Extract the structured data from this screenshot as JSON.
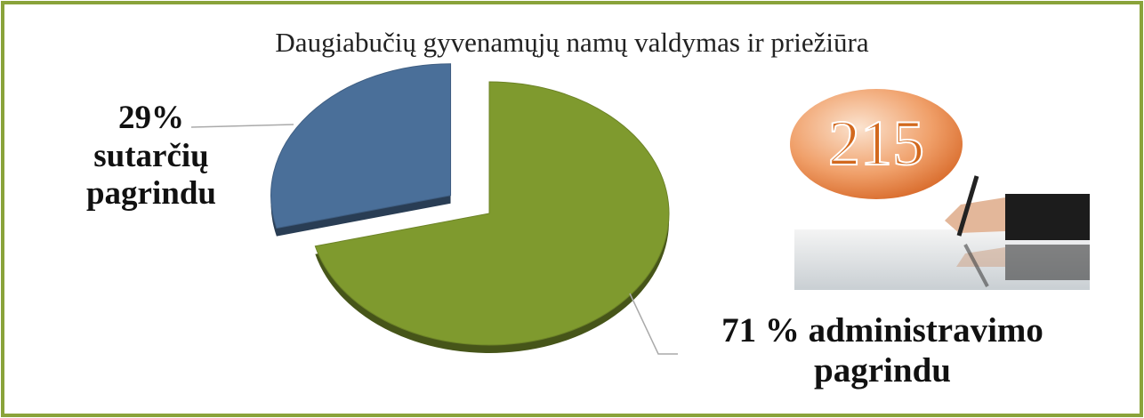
{
  "chart_data": {
    "type": "pie",
    "title": "Daugiabučių gyvenamųjų namų valdymas ir priežiūra",
    "categories": [
      "sutarčių pagrindu",
      "administravimo pagrindu"
    ],
    "values": [
      29,
      71
    ],
    "value_labels": [
      "29%",
      "71 %"
    ],
    "colors": [
      "#4a6f99",
      "#7f9a2e"
    ],
    "exploded": [
      true,
      false
    ],
    "annotations": [
      "215"
    ]
  }
}
